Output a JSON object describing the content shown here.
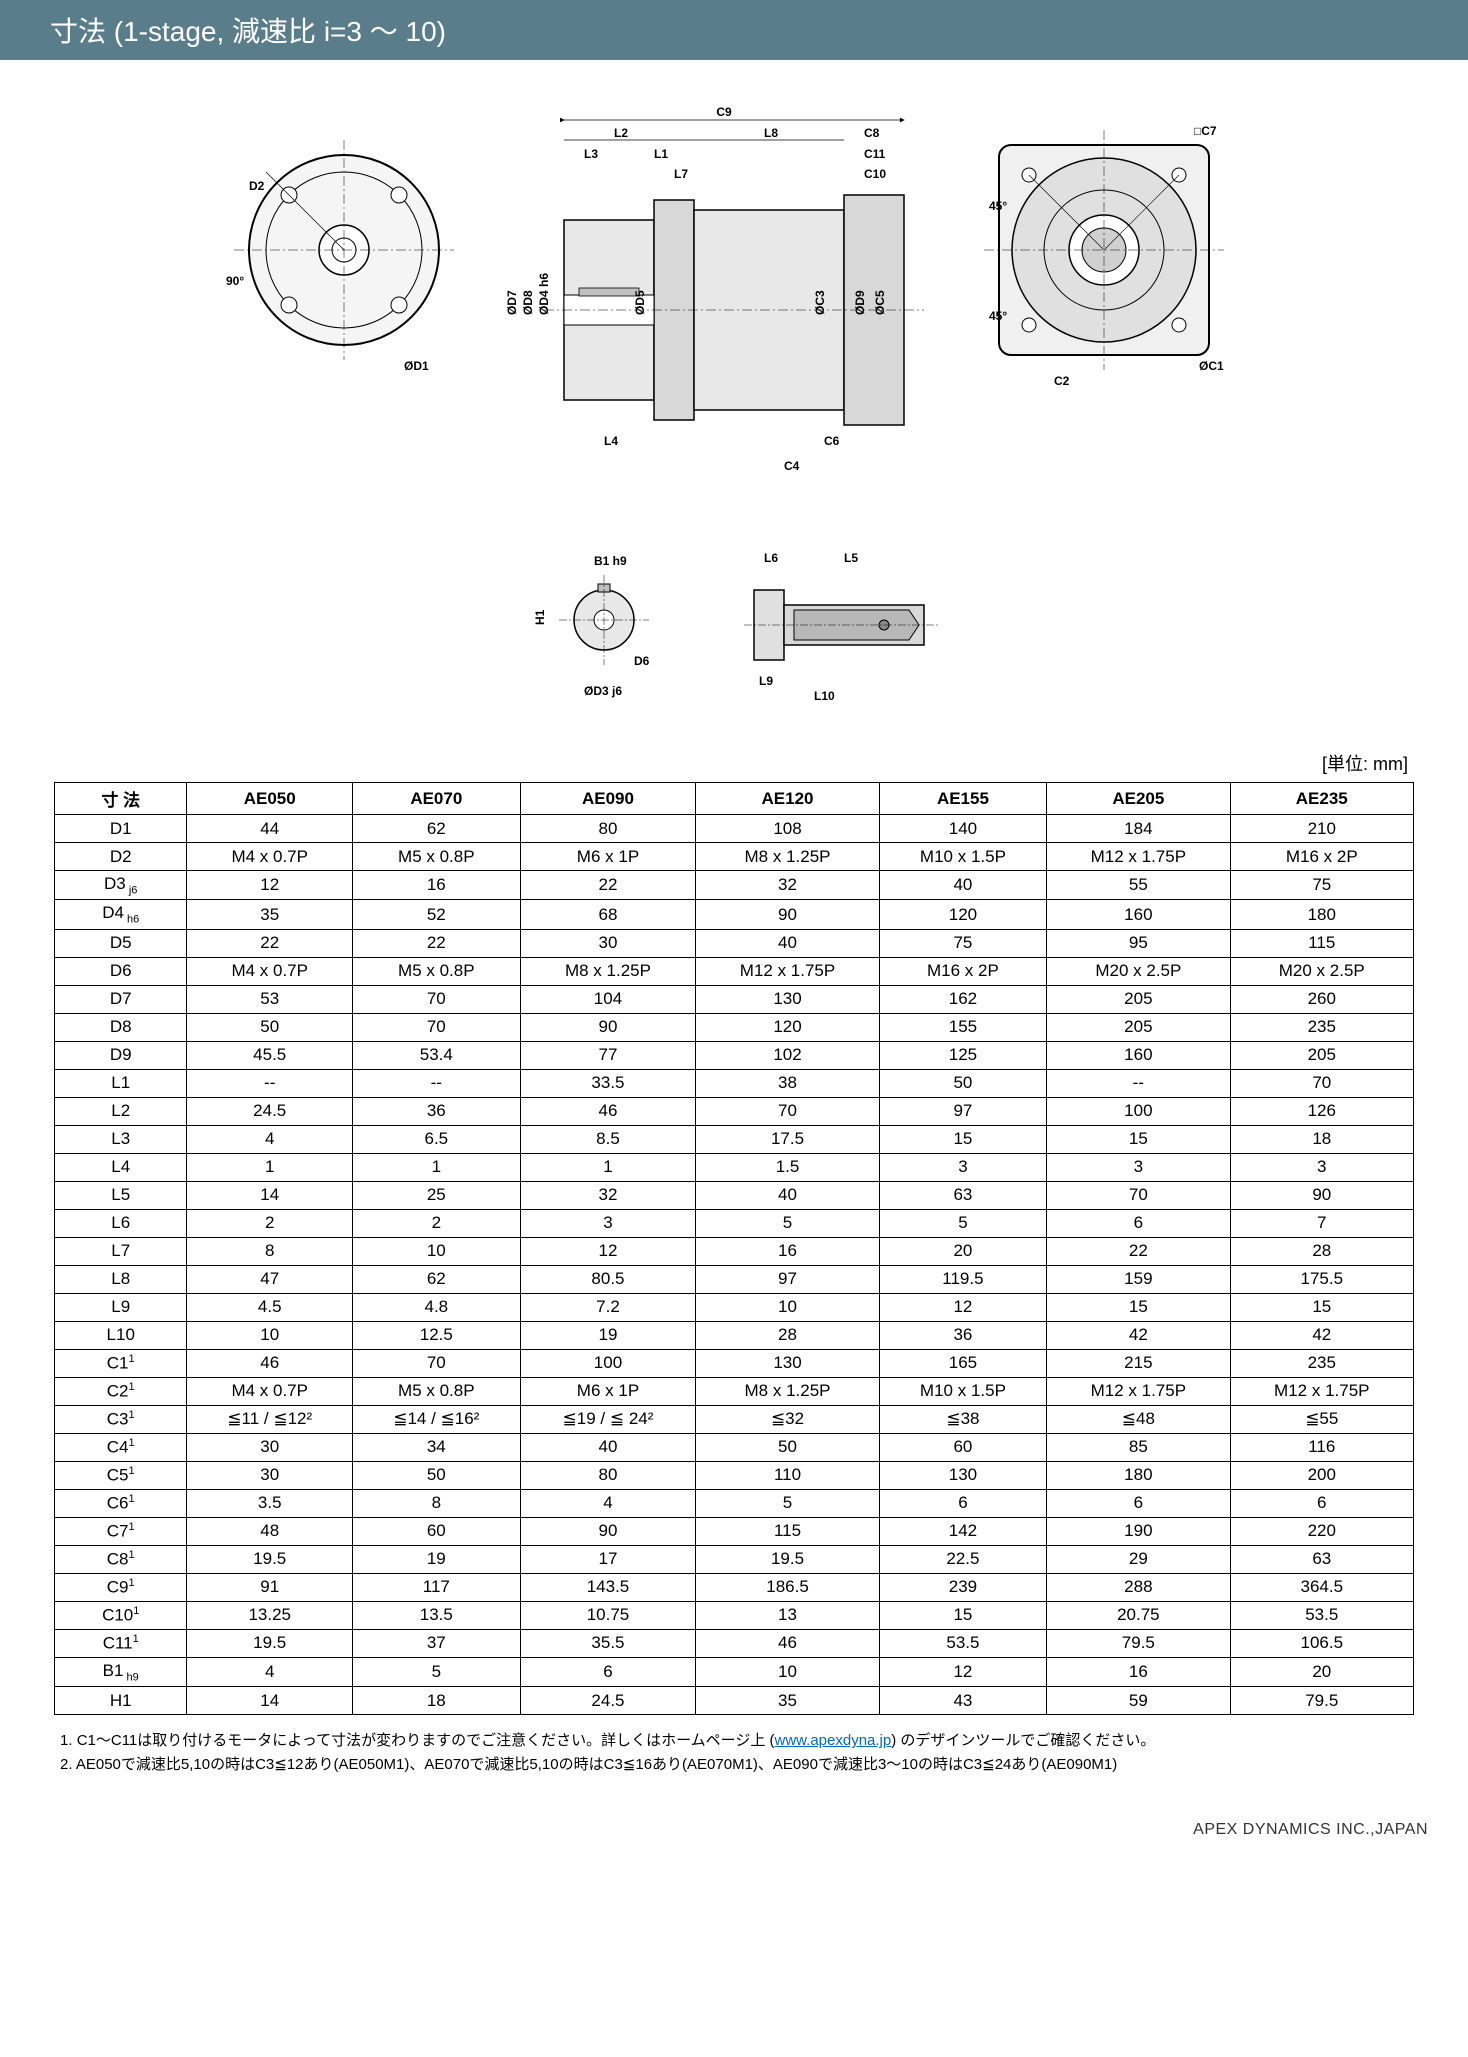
{
  "header": "寸法 (1-stage, 減速比 i=3 ～ 10)",
  "unit_label": "[単位: mm]",
  "drawing_labels": {
    "d1": "ØD1",
    "d2": "D2",
    "d3": "ØD3 j6",
    "d4": "ØD4 h6",
    "d5": "ØD5",
    "d6": "D6",
    "d7": "ØD7",
    "d8": "ØD8",
    "d9": "ØD9",
    "l1": "L1",
    "l2": "L2",
    "l3": "L3",
    "l4": "L4",
    "l5": "L5",
    "l6": "L6",
    "l7": "L7",
    "l8": "L8",
    "l9": "L9",
    "l10": "L10",
    "c1": "ØC1",
    "c2": "C2",
    "c3": "ØC3",
    "c4": "C4",
    "c5": "ØC5",
    "c6": "C6",
    "c7": "□C7",
    "c8": "C8",
    "c9": "C9",
    "c10": "C10",
    "c11": "C11",
    "b1": "B1 h9",
    "h1": "H1",
    "ang45": "45°",
    "ang90": "90°"
  },
  "table": {
    "header_label": "寸 法",
    "columns": [
      "AE050",
      "AE070",
      "AE090",
      "AE120",
      "AE155",
      "AE205",
      "AE235"
    ],
    "rows": [
      {
        "label": "D1",
        "sub": "",
        "sup": "",
        "v": [
          "44",
          "62",
          "80",
          "108",
          "140",
          "184",
          "210"
        ]
      },
      {
        "label": "D2",
        "sub": "",
        "sup": "",
        "v": [
          "M4 x 0.7P",
          "M5 x 0.8P",
          "M6 x 1P",
          "M8 x 1.25P",
          "M10 x 1.5P",
          "M12 x 1.75P",
          "M16 x 2P"
        ]
      },
      {
        "label": "D3",
        "sub": " j6",
        "sup": "",
        "v": [
          "12",
          "16",
          "22",
          "32",
          "40",
          "55",
          "75"
        ]
      },
      {
        "label": "D4",
        "sub": " h6",
        "sup": "",
        "v": [
          "35",
          "52",
          "68",
          "90",
          "120",
          "160",
          "180"
        ]
      },
      {
        "label": "D5",
        "sub": "",
        "sup": "",
        "v": [
          "22",
          "22",
          "30",
          "40",
          "75",
          "95",
          "115"
        ]
      },
      {
        "label": "D6",
        "sub": "",
        "sup": "",
        "v": [
          "M4 x 0.7P",
          "M5 x 0.8P",
          "M8 x 1.25P",
          "M12 x 1.75P",
          "M16 x 2P",
          "M20 x 2.5P",
          "M20 x 2.5P"
        ]
      },
      {
        "label": "D7",
        "sub": "",
        "sup": "",
        "v": [
          "53",
          "70",
          "104",
          "130",
          "162",
          "205",
          "260"
        ]
      },
      {
        "label": "D8",
        "sub": "",
        "sup": "",
        "v": [
          "50",
          "70",
          "90",
          "120",
          "155",
          "205",
          "235"
        ]
      },
      {
        "label": "D9",
        "sub": "",
        "sup": "",
        "v": [
          "45.5",
          "53.4",
          "77",
          "102",
          "125",
          "160",
          "205"
        ]
      },
      {
        "label": "L1",
        "sub": "",
        "sup": "",
        "v": [
          "--",
          "--",
          "33.5",
          "38",
          "50",
          "--",
          "70"
        ]
      },
      {
        "label": "L2",
        "sub": "",
        "sup": "",
        "v": [
          "24.5",
          "36",
          "46",
          "70",
          "97",
          "100",
          "126"
        ]
      },
      {
        "label": "L3",
        "sub": "",
        "sup": "",
        "v": [
          "4",
          "6.5",
          "8.5",
          "17.5",
          "15",
          "15",
          "18"
        ]
      },
      {
        "label": "L4",
        "sub": "",
        "sup": "",
        "v": [
          "1",
          "1",
          "1",
          "1.5",
          "3",
          "3",
          "3"
        ]
      },
      {
        "label": "L5",
        "sub": "",
        "sup": "",
        "v": [
          "14",
          "25",
          "32",
          "40",
          "63",
          "70",
          "90"
        ]
      },
      {
        "label": "L6",
        "sub": "",
        "sup": "",
        "v": [
          "2",
          "2",
          "3",
          "5",
          "5",
          "6",
          "7"
        ]
      },
      {
        "label": "L7",
        "sub": "",
        "sup": "",
        "v": [
          "8",
          "10",
          "12",
          "16",
          "20",
          "22",
          "28"
        ]
      },
      {
        "label": "L8",
        "sub": "",
        "sup": "",
        "v": [
          "47",
          "62",
          "80.5",
          "97",
          "119.5",
          "159",
          "175.5"
        ]
      },
      {
        "label": "L9",
        "sub": "",
        "sup": "",
        "v": [
          "4.5",
          "4.8",
          "7.2",
          "10",
          "12",
          "15",
          "15"
        ]
      },
      {
        "label": "L10",
        "sub": "",
        "sup": "",
        "v": [
          "10",
          "12.5",
          "19",
          "28",
          "36",
          "42",
          "42"
        ]
      },
      {
        "label": "C1",
        "sub": "",
        "sup": "1",
        "v": [
          "46",
          "70",
          "100",
          "130",
          "165",
          "215",
          "235"
        ]
      },
      {
        "label": "C2",
        "sub": "",
        "sup": "1",
        "v": [
          "M4 x 0.7P",
          "M5 x 0.8P",
          "M6 x 1P",
          "M8 x 1.25P",
          "M10 x 1.5P",
          "M12 x 1.75P",
          "M12 x 1.75P"
        ]
      },
      {
        "label": "C3",
        "sub": "",
        "sup": "1",
        "v": [
          "≦11 / ≦12²",
          "≦14 / ≦16²",
          "≦19 / ≦ 24²",
          "≦32",
          "≦38",
          "≦48",
          "≦55"
        ]
      },
      {
        "label": "C4",
        "sub": "",
        "sup": "1",
        "v": [
          "30",
          "34",
          "40",
          "50",
          "60",
          "85",
          "116"
        ]
      },
      {
        "label": "C5",
        "sub": "",
        "sup": "1",
        "v": [
          "30",
          "50",
          "80",
          "110",
          "130",
          "180",
          "200"
        ]
      },
      {
        "label": "C6",
        "sub": "",
        "sup": "1",
        "v": [
          "3.5",
          "8",
          "4",
          "5",
          "6",
          "6",
          "6"
        ]
      },
      {
        "label": "C7",
        "sub": "",
        "sup": "1",
        "v": [
          "48",
          "60",
          "90",
          "115",
          "142",
          "190",
          "220"
        ]
      },
      {
        "label": "C8",
        "sub": "",
        "sup": "1",
        "v": [
          "19.5",
          "19",
          "17",
          "19.5",
          "22.5",
          "29",
          "63"
        ]
      },
      {
        "label": "C9",
        "sub": "",
        "sup": "1",
        "v": [
          "91",
          "117",
          "143.5",
          "186.5",
          "239",
          "288",
          "364.5"
        ]
      },
      {
        "label": "C10",
        "sub": "",
        "sup": "1",
        "v": [
          "13.25",
          "13.5",
          "10.75",
          "13",
          "15",
          "20.75",
          "53.5"
        ]
      },
      {
        "label": "C11",
        "sub": "",
        "sup": "1",
        "v": [
          "19.5",
          "37",
          "35.5",
          "46",
          "53.5",
          "79.5",
          "106.5"
        ]
      },
      {
        "label": "B1",
        "sub": " h9",
        "sup": "",
        "v": [
          "4",
          "5",
          "6",
          "10",
          "12",
          "16",
          "20"
        ]
      },
      {
        "label": "H1",
        "sub": "",
        "sup": "",
        "v": [
          "14",
          "18",
          "24.5",
          "35",
          "43",
          "59",
          "79.5"
        ]
      }
    ]
  },
  "footnotes": [
    {
      "n": "1.",
      "text": "C1～C11は取り付けるモータによって寸法が変わりますのでご注意ください。詳しくはホームページ上 (",
      "link_text": "www.apexdyna.jp",
      "link_after": ") のデザインツールでご確認ください。"
    },
    {
      "n": "2.",
      "text": "AE050で減速比5,10の時はC3≦12あり(AE050M1)、AE070で減速比5,10の時はC3≦16あり(AE070M1)、AE090で減速比3～10の時はC3≦24あり(AE090M1)",
      "link_text": "",
      "link_after": ""
    }
  ],
  "footer_brand": "APEX DYNAMICS INC.,JAPAN",
  "colors": {
    "header_bg": "#5a7d8c",
    "header_fg": "#ffffff",
    "border": "#000000",
    "link": "#0066cc",
    "drawing_stroke": "#000000",
    "drawing_fill_light": "#f5f5f5",
    "drawing_fill_dark": "#d0d0d0"
  }
}
